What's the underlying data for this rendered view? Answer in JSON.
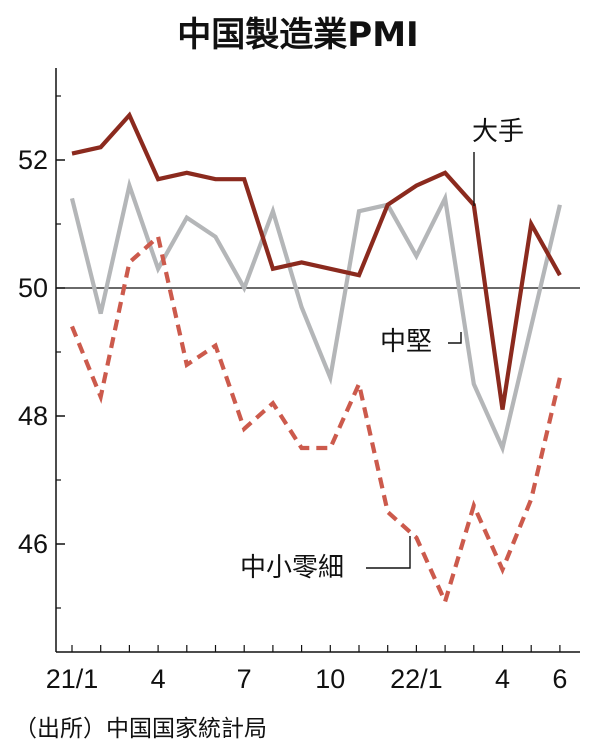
{
  "chart_data": {
    "type": "line",
    "title": "中国製造業PMI",
    "source": "（出所）中国国家統計局",
    "x": [
      "21/1",
      "21/2",
      "21/3",
      "21/4",
      "21/5",
      "21/6",
      "21/7",
      "21/8",
      "21/9",
      "21/10",
      "21/11",
      "21/12",
      "22/1",
      "22/2",
      "22/3",
      "22/4",
      "22/5",
      "22/6"
    ],
    "xtick_labels": [
      "21/1",
      "4",
      "7",
      "10",
      "22/1",
      "4",
      "6"
    ],
    "xtick_index": [
      0,
      3,
      6,
      9,
      12,
      15,
      17
    ],
    "yticks": [
      46,
      48,
      50,
      52
    ],
    "ylim": [
      44.5,
      53.5
    ],
    "reference_line": 50,
    "series": [
      {
        "name": "大手",
        "color": "#8b2a1e",
        "style": "solid",
        "values": [
          52.1,
          52.2,
          52.7,
          51.7,
          51.8,
          51.7,
          51.7,
          50.3,
          50.4,
          50.3,
          50.2,
          51.3,
          51.6,
          51.8,
          51.3,
          48.1,
          51.0,
          50.2
        ]
      },
      {
        "name": "中堅",
        "color": "#b4b6b8",
        "style": "solid",
        "values": [
          51.4,
          49.6,
          51.6,
          50.3,
          51.1,
          50.8,
          50.0,
          51.2,
          49.7,
          48.6,
          51.2,
          51.3,
          50.5,
          51.4,
          48.5,
          47.5,
          49.4,
          51.3
        ]
      },
      {
        "name": "中小零細",
        "color": "#cc5a4c",
        "style": "dashed",
        "values": [
          49.4,
          48.3,
          50.4,
          50.8,
          48.8,
          49.1,
          47.8,
          48.2,
          47.5,
          47.5,
          48.5,
          46.5,
          46.1,
          45.1,
          46.6,
          45.6,
          46.7,
          48.6
        ]
      }
    ]
  }
}
